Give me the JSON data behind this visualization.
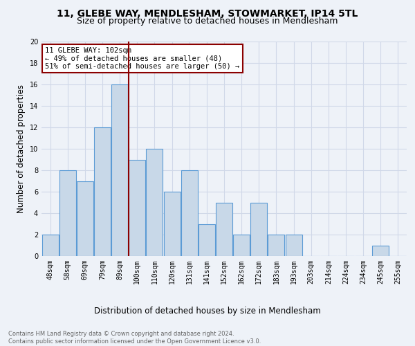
{
  "title": "11, GLEBE WAY, MENDLESHAM, STOWMARKET, IP14 5TL",
  "subtitle": "Size of property relative to detached houses in Mendlesham",
  "xlabel": "Distribution of detached houses by size in Mendlesham",
  "ylabel": "Number of detached properties",
  "footer_line1": "Contains HM Land Registry data © Crown copyright and database right 2024.",
  "footer_line2": "Contains public sector information licensed under the Open Government Licence v3.0.",
  "categories": [
    "48sqm",
    "58sqm",
    "69sqm",
    "79sqm",
    "89sqm",
    "100sqm",
    "110sqm",
    "120sqm",
    "131sqm",
    "141sqm",
    "152sqm",
    "162sqm",
    "172sqm",
    "183sqm",
    "193sqm",
    "203sqm",
    "214sqm",
    "224sqm",
    "234sqm",
    "245sqm",
    "255sqm"
  ],
  "values": [
    2,
    8,
    7,
    12,
    16,
    9,
    10,
    6,
    8,
    3,
    5,
    2,
    5,
    2,
    2,
    0,
    0,
    0,
    0,
    1,
    0
  ],
  "bar_color": "#c8d8e8",
  "bar_edge_color": "#5b9bd5",
  "vline_color": "#8b0000",
  "vline_index": 4.5,
  "annotation_text": "11 GLEBE WAY: 102sqm\n← 49% of detached houses are smaller (48)\n51% of semi-detached houses are larger (50) →",
  "annotation_box_color": "white",
  "annotation_box_edge": "#8b0000",
  "ylim": [
    0,
    20
  ],
  "yticks": [
    0,
    2,
    4,
    6,
    8,
    10,
    12,
    14,
    16,
    18,
    20
  ],
  "grid_color": "#d0d8e8",
  "bg_color": "#eef2f8",
  "title_fontsize": 10,
  "subtitle_fontsize": 9,
  "xlabel_fontsize": 8.5,
  "ylabel_fontsize": 8.5,
  "tick_fontsize": 7,
  "annotation_fontsize": 7.5,
  "footer_fontsize": 6,
  "footer_color": "#666666"
}
